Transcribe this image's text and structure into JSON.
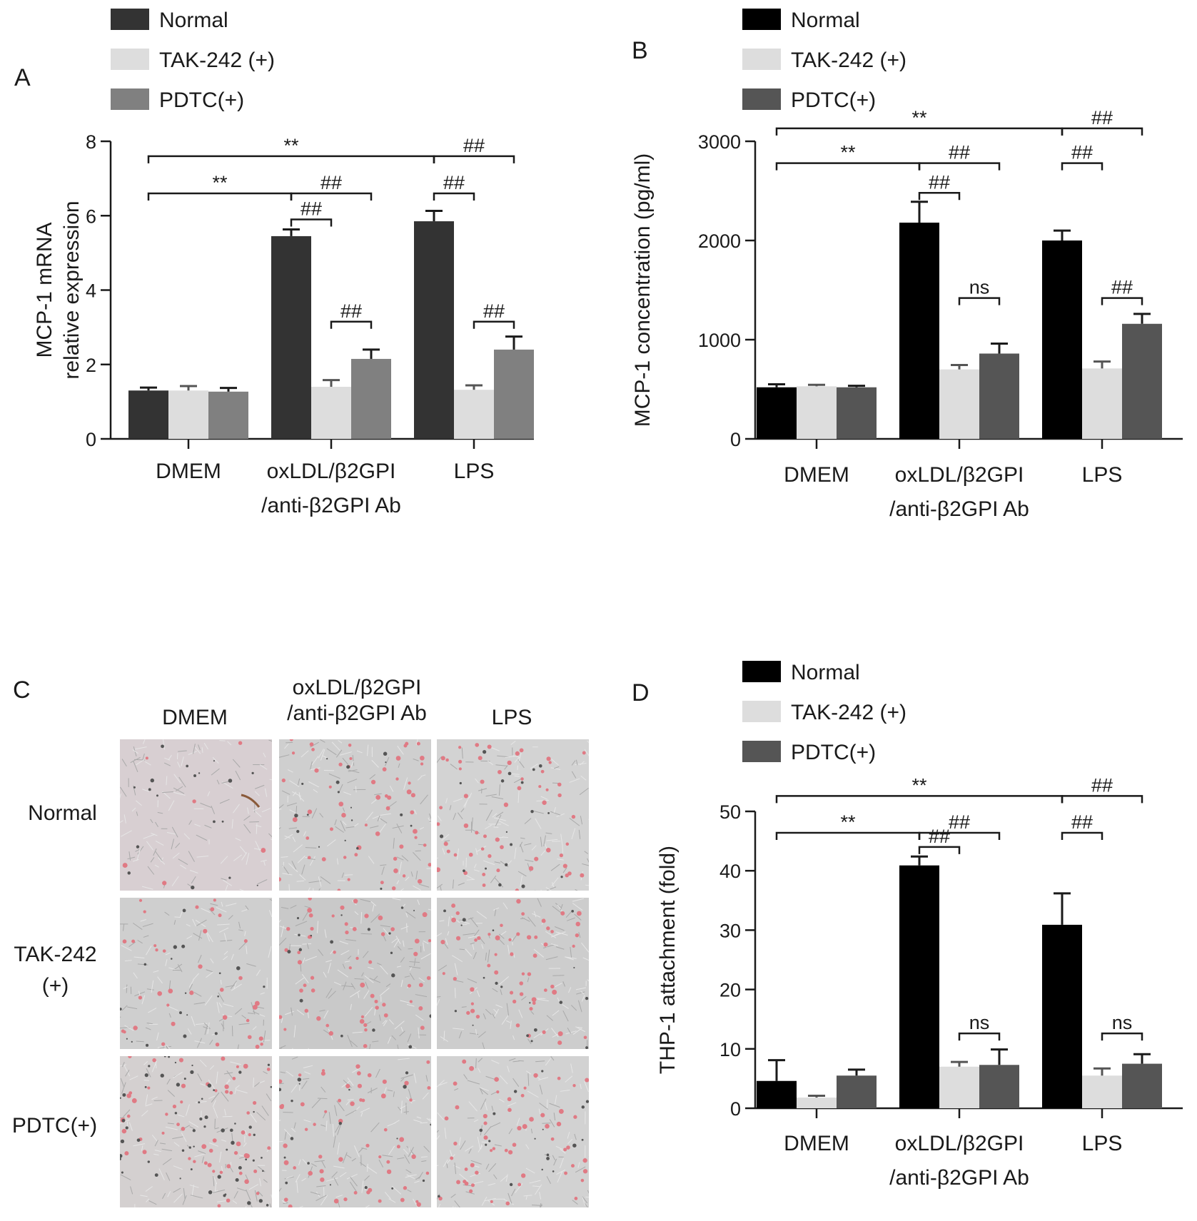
{
  "categories": [
    "DMEM",
    "oxLDL/β2GPI\n/anti-β2GPI Ab",
    "LPS"
  ],
  "legend": [
    "Normal",
    "TAK-242 (+)",
    "PDTC(+)"
  ],
  "panel_c": {
    "letter": "C",
    "col_labels": [
      "DMEM",
      "oxLDL/β2GPI\n/anti-β2GPI Ab",
      "LPS"
    ],
    "row_labels": [
      "Normal",
      "TAK-242\n(+)",
      "PDTC(+)"
    ]
  },
  "chart_data": [
    {
      "letter": "A",
      "type": "bar",
      "ylabel": "MCP-1 mRNA\nrelative expression",
      "xlabel": "",
      "ylim": [
        0,
        8
      ],
      "yticks": [
        0,
        2,
        4,
        6,
        8
      ],
      "colors": [
        "#333333",
        "#dddddd",
        "#808080"
      ],
      "categories": [
        "DMEM",
        "oxLDL/β2GPI\n/anti-β2GPI Ab",
        "LPS"
      ],
      "series": [
        {
          "name": "Normal",
          "values": [
            1.3,
            5.45,
            5.85
          ],
          "errors": [
            0.08,
            0.18,
            0.28
          ]
        },
        {
          "name": "TAK-242 (+)",
          "values": [
            1.3,
            1.4,
            1.32
          ],
          "errors": [
            0.12,
            0.18,
            0.12
          ]
        },
        {
          "name": "PDTC(+)",
          "values": [
            1.27,
            2.15,
            2.4
          ],
          "errors": [
            0.1,
            0.25,
            0.35
          ]
        }
      ],
      "annotations": [
        {
          "text": "**",
          "from": [
            0,
            0
          ],
          "to": [
            2,
            0
          ],
          "y": 7.6
        },
        {
          "text": "##",
          "from": [
            2,
            0
          ],
          "to": [
            2,
            2
          ],
          "y": 7.6
        },
        {
          "text": "**",
          "from": [
            0,
            0
          ],
          "to": [
            1,
            0
          ],
          "y": 6.6
        },
        {
          "text": "##",
          "from": [
            1,
            0
          ],
          "to": [
            1,
            2
          ],
          "y": 6.6
        },
        {
          "text": "##",
          "from": [
            2,
            0
          ],
          "to": [
            2,
            1
          ],
          "y": 6.6
        },
        {
          "text": "##",
          "from": [
            1,
            0
          ],
          "to": [
            1,
            1
          ],
          "y": 5.9
        },
        {
          "text": "##",
          "from": [
            1,
            1
          ],
          "to": [
            1,
            2
          ],
          "y": 3.15
        },
        {
          "text": "##",
          "from": [
            2,
            1
          ],
          "to": [
            2,
            2
          ],
          "y": 3.15
        }
      ]
    },
    {
      "letter": "B",
      "type": "bar",
      "ylabel": "MCP-1 concentration (pg/ml)",
      "xlabel": "",
      "ylim": [
        0,
        3000
      ],
      "yticks": [
        0,
        1000,
        2000,
        3000
      ],
      "colors": [
        "#000000",
        "#dddddd",
        "#555555"
      ],
      "categories": [
        "DMEM",
        "oxLDL/β2GPI\n/anti-β2GPI Ab",
        "LPS"
      ],
      "series": [
        {
          "name": "Normal",
          "values": [
            520,
            2180,
            2000
          ],
          "errors": [
            30,
            210,
            100
          ]
        },
        {
          "name": "TAK-242 (+)",
          "values": [
            530,
            700,
            710
          ],
          "errors": [
            15,
            45,
            70
          ]
        },
        {
          "name": "PDTC(+)",
          "values": [
            520,
            860,
            1160
          ],
          "errors": [
            15,
            100,
            100
          ]
        }
      ],
      "annotations": [
        {
          "text": "**",
          "from": [
            0,
            0
          ],
          "to": [
            2,
            0
          ],
          "y": 3130
        },
        {
          "text": "##",
          "from": [
            2,
            0
          ],
          "to": [
            2,
            2
          ],
          "y": 3130
        },
        {
          "text": "**",
          "from": [
            0,
            0
          ],
          "to": [
            1,
            0
          ],
          "y": 2780
        },
        {
          "text": "##",
          "from": [
            1,
            0
          ],
          "to": [
            1,
            2
          ],
          "y": 2780
        },
        {
          "text": "##",
          "from": [
            2,
            0
          ],
          "to": [
            2,
            1
          ],
          "y": 2780
        },
        {
          "text": "##",
          "from": [
            1,
            0
          ],
          "to": [
            1,
            1
          ],
          "y": 2480
        },
        {
          "text": "ns",
          "from": [
            1,
            1
          ],
          "to": [
            1,
            2
          ],
          "y": 1420
        },
        {
          "text": "##",
          "from": [
            2,
            1
          ],
          "to": [
            2,
            2
          ],
          "y": 1420
        }
      ]
    },
    {
      "letter": "D",
      "type": "bar",
      "ylabel": "THP-1 attachment (fold)",
      "xlabel": "",
      "ylim": [
        0,
        50
      ],
      "yticks": [
        0,
        10,
        20,
        30,
        40,
        50
      ],
      "colors": [
        "#000000",
        "#dddddd",
        "#555555"
      ],
      "categories": [
        "DMEM",
        "oxLDL/β2GPI\n/anti-β2GPI Ab",
        "LPS"
      ],
      "series": [
        {
          "name": "Normal",
          "values": [
            4.6,
            40.9,
            30.9
          ],
          "errors": [
            3.5,
            1.5,
            5.3
          ]
        },
        {
          "name": "TAK-242 (+)",
          "values": [
            1.8,
            7.0,
            5.5
          ],
          "errors": [
            0.3,
            0.8,
            1.2
          ]
        },
        {
          "name": "PDTC(+)",
          "values": [
            5.5,
            7.3,
            7.5
          ],
          "errors": [
            1.0,
            2.6,
            1.6
          ]
        }
      ],
      "annotations": [
        {
          "text": "**",
          "from": [
            0,
            0
          ],
          "to": [
            2,
            0
          ],
          "y": 52.6
        },
        {
          "text": "##",
          "from": [
            2,
            0
          ],
          "to": [
            2,
            2
          ],
          "y": 52.6
        },
        {
          "text": "**",
          "from": [
            0,
            0
          ],
          "to": [
            1,
            0
          ],
          "y": 46.4
        },
        {
          "text": "##",
          "from": [
            1,
            0
          ],
          "to": [
            1,
            2
          ],
          "y": 46.4
        },
        {
          "text": "##",
          "from": [
            2,
            0
          ],
          "to": [
            2,
            1
          ],
          "y": 46.4
        },
        {
          "text": "##",
          "from": [
            1,
            0
          ],
          "to": [
            1,
            1
          ],
          "y": 44.0
        },
        {
          "text": "ns",
          "from": [
            1,
            1
          ],
          "to": [
            1,
            2
          ],
          "y": 12.6
        },
        {
          "text": "ns",
          "from": [
            2,
            1
          ],
          "to": [
            2,
            2
          ],
          "y": 12.6
        }
      ]
    }
  ]
}
